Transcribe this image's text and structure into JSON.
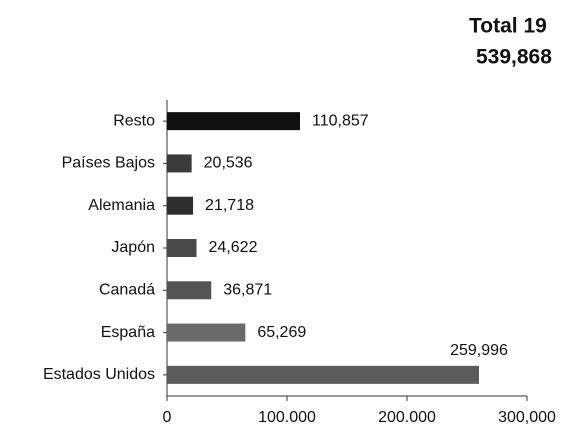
{
  "chart_data": {
    "type": "hbar",
    "title": [
      "Total 19",
      "539,868"
    ],
    "categories": [
      "Resto",
      "Países Bajos",
      "Alemania",
      "Japón",
      "Canadá",
      "España",
      "Estados Unidos"
    ],
    "values": [
      110857,
      20536,
      21718,
      24622,
      36871,
      65269,
      259996
    ],
    "value_labels": [
      "110,857",
      "20,536",
      "21,718",
      "24,622",
      "36,871",
      "65,269",
      "259,996"
    ],
    "colors": [
      "#111111",
      "#3a3a3a",
      "#2e2e2e",
      "#4a4a4a",
      "#555555",
      "#6a6a6a",
      "#5c5c5c"
    ],
    "xlim": [
      0,
      300000
    ],
    "xticks": [
      0,
      {
        "value": 100000,
        "label": "100.000"
      },
      {
        "value": 200000,
        "label": "200.000"
      },
      {
        "value": 300000,
        "label": "300,000"
      }
    ]
  }
}
